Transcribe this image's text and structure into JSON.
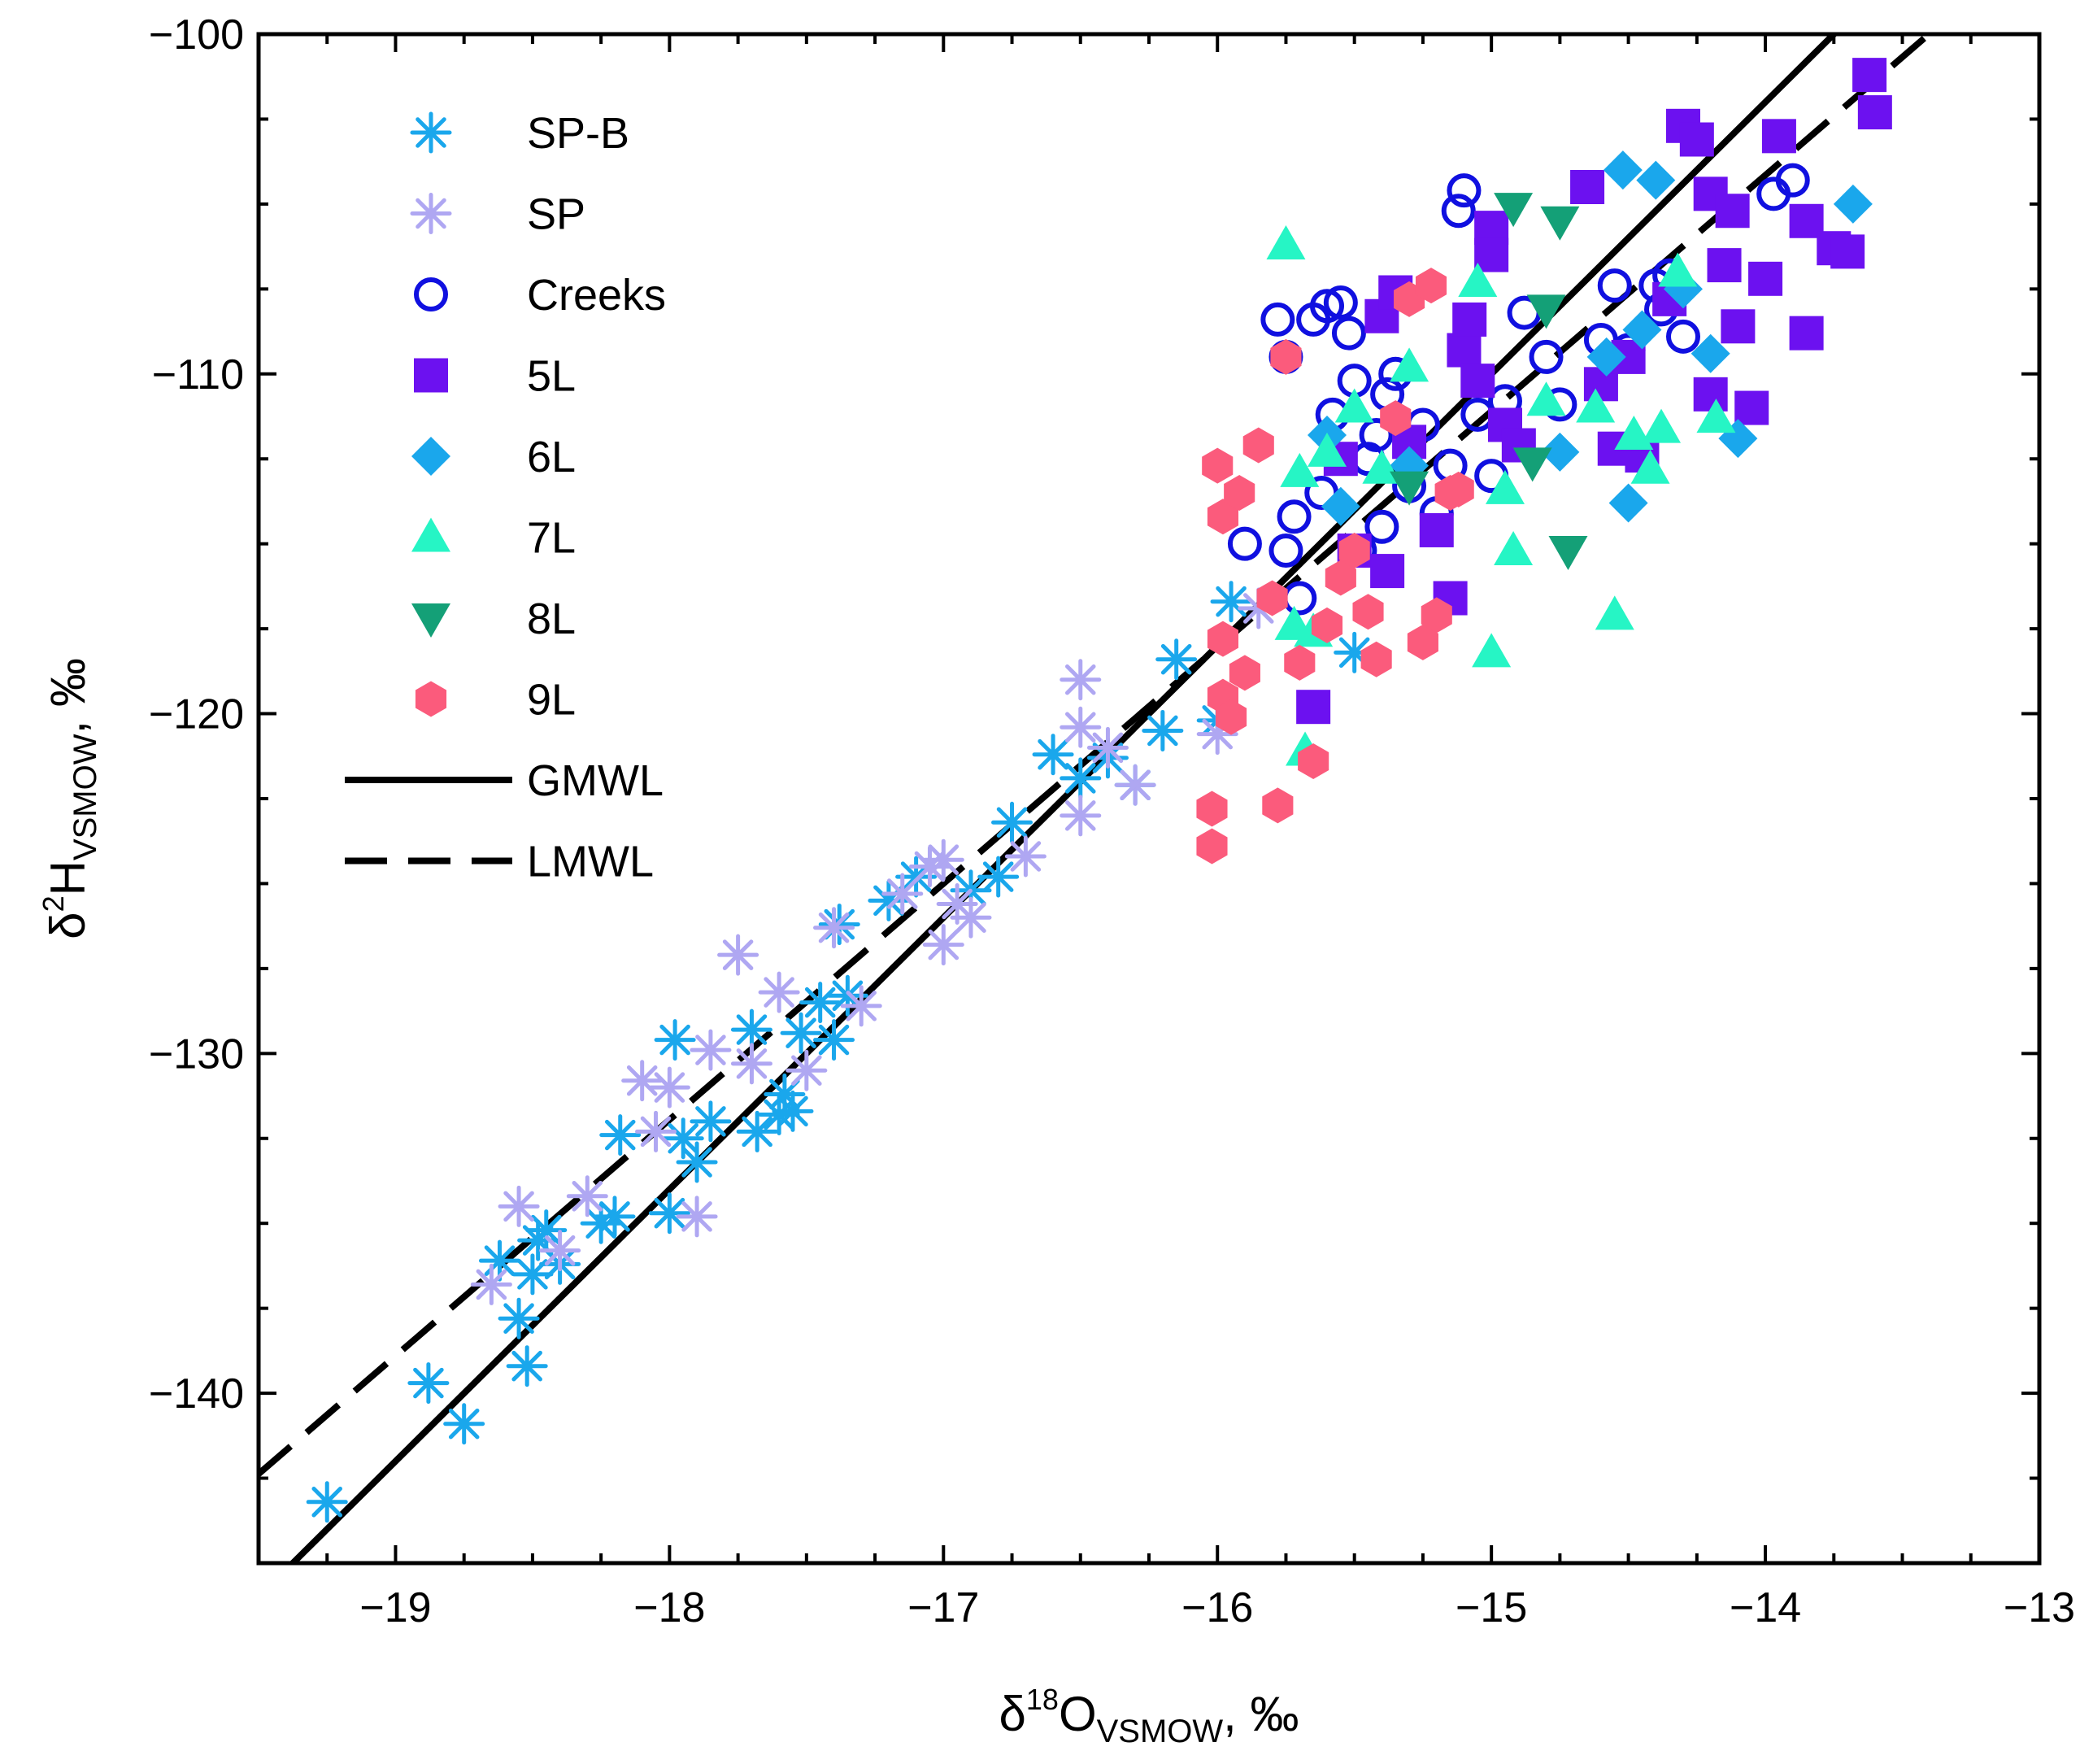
{
  "chart_data": {
    "type": "scatter",
    "xlabel": {
      "prefix": "δ",
      "sup": "18",
      "main": "O",
      "sub": "VSMOW",
      "suffix": ", ‰"
    },
    "ylabel": {
      "prefix": "δ",
      "sup": "2",
      "main": "H",
      "sub": "VSMOW",
      "suffix": ", ‰"
    },
    "xlim": [
      -19.5,
      -13
    ],
    "ylim": [
      -145,
      -100
    ],
    "xticks": [
      -19,
      -18,
      -17,
      -16,
      -15,
      -14,
      -13
    ],
    "xtick_labels": [
      "−19",
      "−18",
      "−17",
      "−16",
      "−15",
      "−14",
      "−13"
    ],
    "yticks": [
      -140,
      -130,
      -120,
      -110,
      -100
    ],
    "ytick_labels": [
      "−140",
      "−130",
      "−120",
      "−110",
      "−100"
    ],
    "legend_position": "top-left",
    "series": [
      {
        "name": "SP-B",
        "marker": "asterisk",
        "color": "#1AA7EC",
        "points": [
          [
            -19.25,
            -143.2
          ],
          [
            -18.88,
            -139.7
          ],
          [
            -18.75,
            -140.9
          ],
          [
            -18.62,
            -136.1
          ],
          [
            -18.55,
            -137.8
          ],
          [
            -18.5,
            -136.5
          ],
          [
            -18.48,
            -135.5
          ],
          [
            -18.52,
            -139.2
          ],
          [
            -18.4,
            -136.2
          ],
          [
            -18.45,
            -135.2
          ],
          [
            -18.25,
            -135
          ],
          [
            -18.2,
            -134.8
          ],
          [
            -18.18,
            -132.4
          ],
          [
            -17.98,
            -129.6
          ],
          [
            -17.95,
            -132.5
          ],
          [
            -17.9,
            -133.2
          ],
          [
            -18.0,
            -134.7
          ],
          [
            -17.85,
            -132
          ],
          [
            -17.7,
            -129.3
          ],
          [
            -17.68,
            -132.3
          ],
          [
            -17.6,
            -131.8
          ],
          [
            -17.58,
            -131.2
          ],
          [
            -17.55,
            -131.7
          ],
          [
            -17.52,
            -129.4
          ],
          [
            -17.45,
            -128.5
          ],
          [
            -17.4,
            -129.6
          ],
          [
            -17.38,
            -126.2
          ],
          [
            -17.35,
            -128.3
          ],
          [
            -17.2,
            -125.5
          ],
          [
            -17.1,
            -124.8
          ],
          [
            -16.9,
            -125.2
          ],
          [
            -16.8,
            -124.8
          ],
          [
            -16.75,
            -123.2
          ],
          [
            -16.6,
            -121.2
          ],
          [
            -16.5,
            -121.9
          ],
          [
            -16.4,
            -121.3
          ],
          [
            -16.3,
            -122.1
          ],
          [
            -16.2,
            -120.5
          ],
          [
            -16.15,
            -118.4
          ],
          [
            -16.0,
            -120.2
          ],
          [
            -15.95,
            -116.7
          ],
          [
            -15.5,
            -118.2
          ]
        ]
      },
      {
        "name": "SP",
        "marker": "asterisk",
        "color": "#AFA7F2",
        "points": [
          [
            -18.65,
            -136.8
          ],
          [
            -18.55,
            -134.5
          ],
          [
            -18.4,
            -135.8
          ],
          [
            -18.3,
            -134.2
          ],
          [
            -18.1,
            -130.8
          ],
          [
            -18.05,
            -132.3
          ],
          [
            -18.0,
            -131
          ],
          [
            -17.9,
            -134.8
          ],
          [
            -17.85,
            -129.9
          ],
          [
            -17.75,
            -127.1
          ],
          [
            -17.7,
            -130.3
          ],
          [
            -17.6,
            -128.2
          ],
          [
            -17.5,
            -130.5
          ],
          [
            -17.4,
            -126.3
          ],
          [
            -17.3,
            -128.6
          ],
          [
            -17.15,
            -125.3
          ],
          [
            -17.05,
            -124.5
          ],
          [
            -17.0,
            -124.3
          ],
          [
            -17.0,
            -126.8
          ],
          [
            -16.95,
            -125.6
          ],
          [
            -16.9,
            -126
          ],
          [
            -16.7,
            -124.2
          ],
          [
            -16.5,
            -123
          ],
          [
            -16.5,
            -120.4
          ],
          [
            -16.5,
            -119
          ],
          [
            -16.4,
            -121
          ],
          [
            -16.3,
            -122.1
          ],
          [
            -16.0,
            -120.6
          ],
          [
            -15.85,
            -116.9
          ]
        ]
      },
      {
        "name": "Creeks",
        "marker": "open-circle",
        "color": "#1010E0",
        "points": [
          [
            -15.9,
            -115
          ],
          [
            -15.78,
            -108.4
          ],
          [
            -15.75,
            -109.5
          ],
          [
            -15.75,
            -115.2
          ],
          [
            -15.72,
            -114.2
          ],
          [
            -15.7,
            -116.6
          ],
          [
            -15.65,
            -108.4
          ],
          [
            -15.6,
            -108
          ],
          [
            -15.62,
            -113.5
          ],
          [
            -15.58,
            -111.2
          ],
          [
            -15.55,
            -107.9
          ],
          [
            -15.52,
            -108.8
          ],
          [
            -15.5,
            -110.2
          ],
          [
            -15.48,
            -115.2
          ],
          [
            -15.45,
            -112.5
          ],
          [
            -15.42,
            -111.8
          ],
          [
            -15.4,
            -114.5
          ],
          [
            -15.38,
            -110.6
          ],
          [
            -15.35,
            -110
          ],
          [
            -15.3,
            -113.3
          ],
          [
            -15.25,
            -111.5
          ],
          [
            -15.2,
            -114.1
          ],
          [
            -15.15,
            -112.7
          ],
          [
            -15.12,
            -105.2
          ],
          [
            -15.1,
            -104.6
          ],
          [
            -15.05,
            -111.2
          ],
          [
            -15.0,
            -113
          ],
          [
            -14.95,
            -110.8
          ],
          [
            -14.88,
            -108.2
          ],
          [
            -14.8,
            -109.5
          ],
          [
            -14.75,
            -110.9
          ],
          [
            -14.6,
            -109
          ],
          [
            -14.55,
            -107.4
          ],
          [
            -14.5,
            -109.3
          ],
          [
            -14.4,
            -107.4
          ],
          [
            -14.38,
            -108.1
          ],
          [
            -14.35,
            -107.1
          ],
          [
            -14.3,
            -108.9
          ],
          [
            -13.97,
            -104.7
          ],
          [
            -13.9,
            -104.3
          ]
        ]
      },
      {
        "name": "5L",
        "marker": "square",
        "color": "#6C11F0",
        "points": [
          [
            -15.65,
            -119.8
          ],
          [
            -15.55,
            -112.5
          ],
          [
            -15.5,
            -115.2
          ],
          [
            -15.4,
            -108.3
          ],
          [
            -15.38,
            -115.8
          ],
          [
            -15.35,
            -107.6
          ],
          [
            -15.3,
            -112
          ],
          [
            -15.2,
            -114.6
          ],
          [
            -15.15,
            -116.6
          ],
          [
            -15.1,
            -109.3
          ],
          [
            -15.08,
            -108.4
          ],
          [
            -15.05,
            -110.2
          ],
          [
            -15.0,
            -105.7
          ],
          [
            -15.0,
            -106.5
          ],
          [
            -14.95,
            -111.5
          ],
          [
            -14.9,
            -112.1
          ],
          [
            -14.65,
            -104.5
          ],
          [
            -14.6,
            -110.3
          ],
          [
            -14.55,
            -112.2
          ],
          [
            -14.5,
            -109.5
          ],
          [
            -14.45,
            -112.4
          ],
          [
            -14.35,
            -107.8
          ],
          [
            -14.3,
            -102.7
          ],
          [
            -14.25,
            -103.1
          ],
          [
            -14.2,
            -104.7
          ],
          [
            -14.2,
            -110.6
          ],
          [
            -14.15,
            -106.8
          ],
          [
            -14.1,
            -108.6
          ],
          [
            -14.05,
            -111
          ],
          [
            -14.0,
            -107.2
          ],
          [
            -13.95,
            -103
          ],
          [
            -13.85,
            -108.8
          ],
          [
            -13.85,
            -105.5
          ],
          [
            -13.75,
            -106.3
          ],
          [
            -13.7,
            -106.4
          ],
          [
            -13.62,
            -101.2
          ],
          [
            -13.6,
            -102.3
          ],
          [
            -14.12,
            -105.2
          ]
        ]
      },
      {
        "name": "6L",
        "marker": "diamond",
        "color": "#1AA7EC",
        "points": [
          [
            -15.6,
            -111.8
          ],
          [
            -15.55,
            -113.9
          ],
          [
            -15.3,
            -112.7
          ],
          [
            -14.75,
            -112.3
          ],
          [
            -14.58,
            -109.5
          ],
          [
            -14.52,
            -104
          ],
          [
            -14.5,
            -113.8
          ],
          [
            -14.45,
            -108.7
          ],
          [
            -14.4,
            -104.3
          ],
          [
            -14.3,
            -107.5
          ],
          [
            -14.2,
            -109.4
          ],
          [
            -14.1,
            -111.9
          ],
          [
            -13.68,
            -105
          ]
        ]
      },
      {
        "name": "7L",
        "marker": "triangle-up",
        "color": "#26F5C5",
        "points": [
          [
            -15.75,
            -106.2
          ],
          [
            -15.72,
            -117.4
          ],
          [
            -15.7,
            -112.9
          ],
          [
            -15.68,
            -121.1
          ],
          [
            -15.65,
            -117.6
          ],
          [
            -15.6,
            -112.3
          ],
          [
            -15.5,
            -111
          ],
          [
            -15.4,
            -112.8
          ],
          [
            -15.3,
            -109.8
          ],
          [
            -15.05,
            -107.3
          ],
          [
            -15.0,
            -118.2
          ],
          [
            -14.95,
            -113.4
          ],
          [
            -14.92,
            -115.2
          ],
          [
            -14.8,
            -110.8
          ],
          [
            -14.62,
            -111
          ],
          [
            -14.55,
            -117.1
          ],
          [
            -14.48,
            -111.8
          ],
          [
            -14.42,
            -112.8
          ],
          [
            -14.38,
            -111.6
          ],
          [
            -14.32,
            -107
          ],
          [
            -14.18,
            -111.3
          ]
        ]
      },
      {
        "name": "8L",
        "marker": "triangle-down",
        "color": "#14A077",
        "points": [
          [
            -15.3,
            -113.3
          ],
          [
            -14.92,
            -105.1
          ],
          [
            -14.85,
            -112.6
          ],
          [
            -14.8,
            -108.1
          ],
          [
            -14.75,
            -105.5
          ],
          [
            -14.72,
            -115.2
          ]
        ]
      },
      {
        "name": "9L",
        "marker": "hexagon",
        "color": "#FB5B7C",
        "points": [
          [
            -16.02,
            -123.9
          ],
          [
            -16.02,
            -122.8
          ],
          [
            -16.0,
            -112.7
          ],
          [
            -15.98,
            -114.2
          ],
          [
            -15.98,
            -117.8
          ],
          [
            -15.98,
            -119.5
          ],
          [
            -15.95,
            -120.1
          ],
          [
            -15.92,
            -113.5
          ],
          [
            -15.9,
            -118.8
          ],
          [
            -15.85,
            -112.1
          ],
          [
            -15.8,
            -116.6
          ],
          [
            -15.78,
            -122.7
          ],
          [
            -15.75,
            -109.5
          ],
          [
            -15.7,
            -118.5
          ],
          [
            -15.65,
            -121.4
          ],
          [
            -15.6,
            -117.4
          ],
          [
            -15.55,
            -116
          ],
          [
            -15.5,
            -115.2
          ],
          [
            -15.45,
            -117
          ],
          [
            -15.42,
            -118.4
          ],
          [
            -15.35,
            -111.3
          ],
          [
            -15.3,
            -107.8
          ],
          [
            -15.25,
            -117.9
          ],
          [
            -15.22,
            -107.4
          ],
          [
            -15.2,
            -117.1
          ],
          [
            -15.15,
            -113.5
          ],
          [
            -15.12,
            -113.4
          ]
        ]
      }
    ],
    "lines": [
      {
        "name": "GMWL",
        "style": "solid",
        "color": "#000000",
        "slope": 8,
        "intercept": 10
      },
      {
        "name": "LMWL",
        "style": "dashed",
        "color": "#000000",
        "slope": 6.95,
        "intercept": -6.85
      }
    ]
  }
}
